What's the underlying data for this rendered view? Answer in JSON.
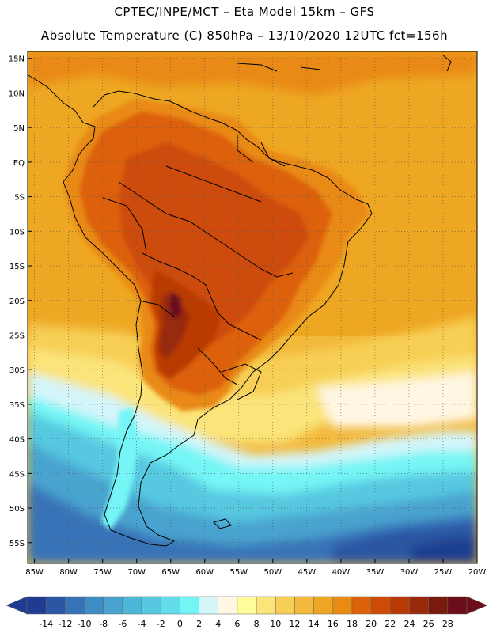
{
  "header": {
    "line1": "CPTEC/INPE/MCT –  Eta Model 15km – GFS",
    "line2": "Absolute Temperature (C) 850hPa – 13/10/2020 12UTC fct=156h"
  },
  "map": {
    "region": "South America",
    "variable": "Absolute Temperature (C) 850hPa",
    "lat_range": [
      -58,
      16
    ],
    "lon_range": [
      -86,
      -20
    ],
    "lat_ticks": [
      {
        "value": 15,
        "label": "15N"
      },
      {
        "value": 10,
        "label": "10N"
      },
      {
        "value": 5,
        "label": "5N"
      },
      {
        "value": 0,
        "label": "EQ"
      },
      {
        "value": -5,
        "label": "5S"
      },
      {
        "value": -10,
        "label": "10S"
      },
      {
        "value": -15,
        "label": "15S"
      },
      {
        "value": -20,
        "label": "20S"
      },
      {
        "value": -25,
        "label": "25S"
      },
      {
        "value": -30,
        "label": "30S"
      },
      {
        "value": -35,
        "label": "35S"
      },
      {
        "value": -40,
        "label": "40S"
      },
      {
        "value": -45,
        "label": "45S"
      },
      {
        "value": -50,
        "label": "50S"
      },
      {
        "value": -55,
        "label": "55S"
      }
    ],
    "lon_ticks": [
      {
        "value": -85,
        "label": "85W"
      },
      {
        "value": -80,
        "label": "80W"
      },
      {
        "value": -75,
        "label": "75W"
      },
      {
        "value": -70,
        "label": "70W"
      },
      {
        "value": -65,
        "label": "65W"
      },
      {
        "value": -60,
        "label": "60W"
      },
      {
        "value": -55,
        "label": "55W"
      },
      {
        "value": -50,
        "label": "50W"
      },
      {
        "value": -45,
        "label": "45W"
      },
      {
        "value": -40,
        "label": "40W"
      },
      {
        "value": -35,
        "label": "35W"
      },
      {
        "value": -30,
        "label": "30W"
      },
      {
        "value": -25,
        "label": "25W"
      },
      {
        "value": -20,
        "label": "20W"
      }
    ]
  },
  "colorbar": {
    "ticks": [
      "-14",
      "-12",
      "-10",
      "-8",
      "-6",
      "-4",
      "-2",
      "0",
      "2",
      "4",
      "6",
      "8",
      "10",
      "12",
      "14",
      "16",
      "18",
      "20",
      "22",
      "24",
      "26",
      "28"
    ],
    "colors": [
      "#1f3c91",
      "#2b56a4",
      "#3773b8",
      "#3f8cc4",
      "#49a3cf",
      "#4bb6d6",
      "#56c8e0",
      "#62dcea",
      "#74f5f5",
      "#d4f5fa",
      "#fff6e3",
      "#fffc9c",
      "#fbe479",
      "#f7cf55",
      "#f2b93b",
      "#eea722",
      "#e98a12",
      "#dd6108",
      "#cd4b07",
      "#b93a06",
      "#98290a",
      "#7a1a0c",
      "#6b0d1a"
    ]
  }
}
